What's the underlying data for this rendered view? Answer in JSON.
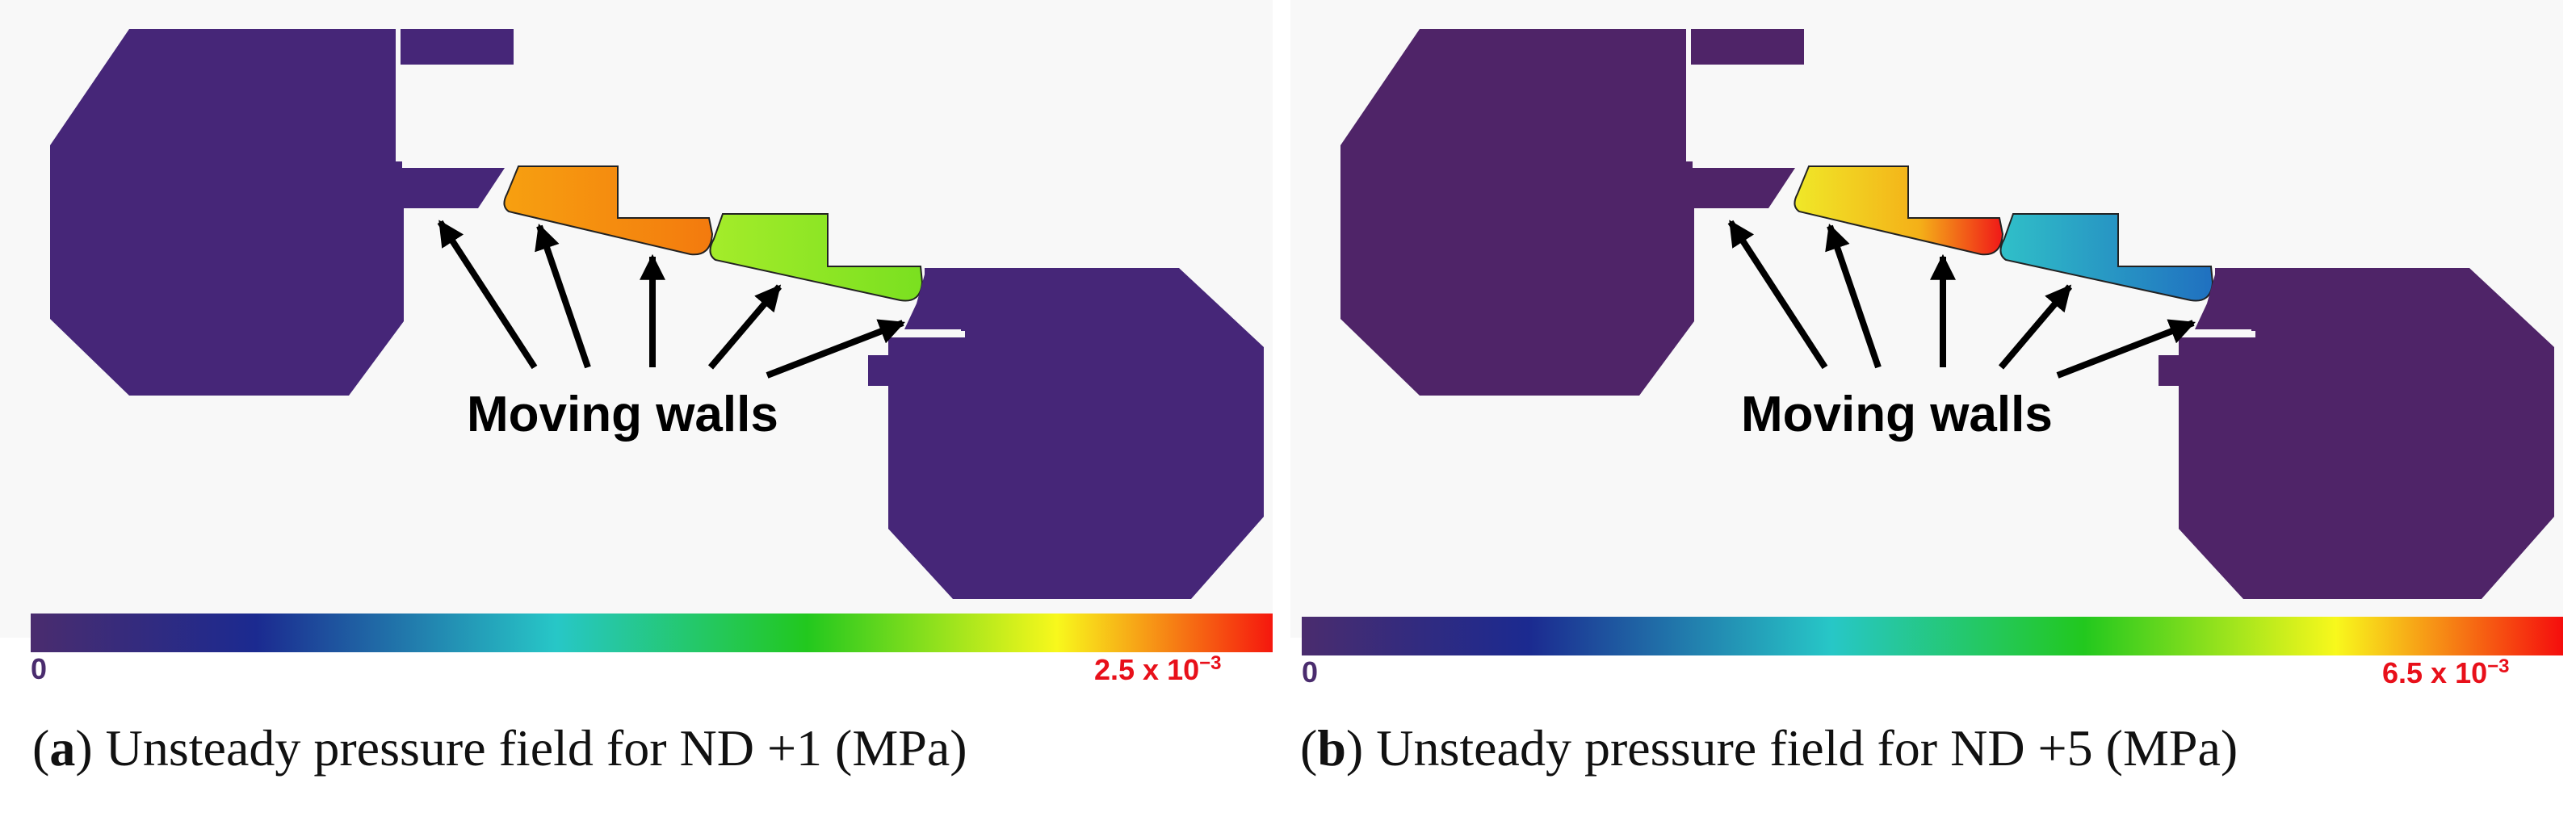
{
  "figure": {
    "panels": [
      {
        "id": "a",
        "callout": "Moving walls",
        "colorbar": {
          "min": "0",
          "max_base": "2.5 x 10",
          "max_exp": "−3"
        },
        "caption": {
          "label": "a",
          "text": " Unsteady pressure field for ND +1 (MPa)"
        },
        "colors": {
          "cavity": "#462678",
          "blade1": "#f58a10",
          "blade2": "#90e826"
        }
      },
      {
        "id": "b",
        "callout": "Moving walls",
        "colorbar": {
          "min": "0",
          "max_base": "6.5 x 10",
          "max_exp": "−3"
        },
        "caption": {
          "label": "b",
          "text": " Unsteady pressure field for ND +5 (MPa)"
        },
        "colors": {
          "cavity": "#4f2468",
          "blade1": "#ecd820",
          "blade2": "#2ab0c4"
        }
      }
    ],
    "colorbar_stops": [
      "#4a2c6e",
      "#1b2a90",
      "#27c7c7",
      "#22c81e",
      "#f8f81c",
      "#f50d0d"
    ]
  }
}
